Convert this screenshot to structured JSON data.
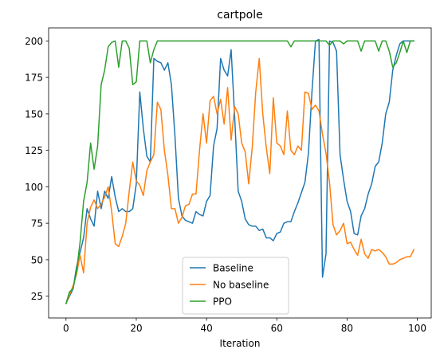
{
  "chart_data": {
    "type": "line",
    "title": "cartpole",
    "xlabel": "Iteration",
    "ylabel": "",
    "xlim": [
      -4.95,
      103.95
    ],
    "ylim": [
      10.05,
      208.95
    ],
    "xticks": [
      0,
      20,
      40,
      60,
      80,
      100
    ],
    "yticks": [
      25,
      50,
      75,
      100,
      125,
      150,
      175,
      200
    ],
    "grid": false,
    "legend_position": "bottom-center",
    "series": [
      {
        "name": "Baseline",
        "color": "#1f77b4",
        "values": [
          20,
          25,
          30,
          45,
          55,
          65,
          85,
          78,
          73,
          97,
          85,
          97,
          92,
          107,
          93,
          83,
          85,
          83,
          83,
          85,
          102,
          165,
          140,
          121,
          117,
          188,
          186,
          185,
          180,
          185,
          170,
          135,
          92,
          80,
          77,
          76,
          75,
          83,
          81,
          80,
          90,
          94,
          128,
          140,
          188,
          180,
          176,
          194,
          148,
          97,
          90,
          78,
          74,
          73,
          73,
          70,
          71,
          65,
          65,
          63,
          68,
          69,
          75,
          76,
          76,
          83,
          89,
          96,
          103,
          123,
          165,
          200,
          201,
          38,
          54,
          200,
          199,
          193,
          122,
          105,
          90,
          83,
          68,
          67,
          80,
          85,
          95,
          102,
          114,
          117,
          130,
          150,
          158,
          180,
          190,
          198,
          200,
          200,
          200,
          200
        ]
      },
      {
        "name": "No baseline",
        "color": "#ff7f0e",
        "values": [
          20,
          26,
          32,
          40,
          53,
          41,
          75,
          86,
          91,
          85,
          88,
          93,
          100,
          83,
          61,
          59,
          66,
          75,
          97,
          117,
          104,
          101,
          94,
          111,
          117,
          122,
          158,
          153,
          125,
          108,
          85,
          85,
          75,
          79,
          87,
          88,
          95,
          95,
          125,
          150,
          130,
          159,
          162,
          150,
          160,
          143,
          168,
          132,
          155,
          150,
          130,
          124,
          102,
          127,
          165,
          188,
          150,
          127,
          109,
          161,
          130,
          128,
          122,
          152,
          125,
          122,
          128,
          125,
          165,
          164,
          153,
          156,
          152,
          136,
          123,
          103,
          74,
          67,
          70,
          75,
          61,
          62,
          57,
          53,
          64,
          54,
          51,
          57,
          56,
          57,
          55,
          52,
          47,
          47,
          48,
          50,
          51,
          52,
          52,
          57
        ]
      },
      {
        "name": "PPO",
        "color": "#2ca02c",
        "values": [
          20,
          28,
          30,
          42,
          62,
          90,
          103,
          130,
          112,
          128,
          170,
          180,
          196,
          199,
          200,
          182,
          200,
          200,
          195,
          170,
          172,
          200,
          200,
          200,
          185,
          194,
          200,
          200,
          200,
          200,
          200,
          200,
          200,
          200,
          200,
          200,
          200,
          200,
          200,
          200,
          200,
          200,
          200,
          200,
          200,
          200,
          200,
          200,
          200,
          200,
          200,
          200,
          200,
          200,
          200,
          200,
          200,
          200,
          200,
          200,
          200,
          200,
          200,
          200,
          196,
          200,
          200,
          200,
          200,
          200,
          200,
          200,
          200,
          200,
          200,
          197,
          200,
          200,
          200,
          198,
          200,
          200,
          200,
          200,
          193,
          200,
          200,
          200,
          200,
          193,
          200,
          200,
          193,
          182,
          185,
          192,
          200,
          192,
          200,
          200
        ]
      }
    ]
  }
}
